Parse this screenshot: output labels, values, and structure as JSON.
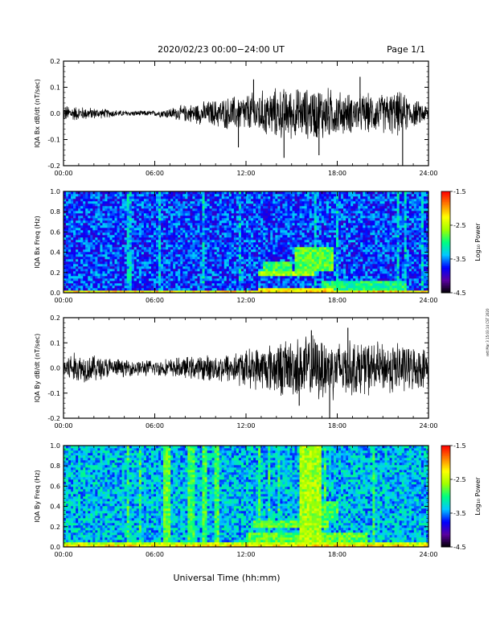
{
  "header": {
    "title": "2020/02/23  00:00−24:00 UT",
    "page": "Page 1/1"
  },
  "side_note": "rett Mar 3 15:03:14 CST 2020",
  "footer": {
    "xlabel": "Universal Time (hh:mm)"
  },
  "colorbar": {
    "label": "Log₁₀ Power",
    "ticks": [
      "-1.5",
      "-2.5",
      "-3.5",
      "-4.5"
    ],
    "colors": [
      "#000000",
      "#5a00a0",
      "#0000ff",
      "#00c8ff",
      "#00ff80",
      "#a0ff00",
      "#ffff00",
      "#ff8000",
      "#ff0000"
    ]
  },
  "chart_data": [
    {
      "type": "line",
      "ylabel": "IQA Bx dB/dt (nT/sec)",
      "xlabel": "",
      "x_tick_labels": [
        "00:00",
        "06:00",
        "12:00",
        "18:00",
        "24:00"
      ],
      "xlim": [
        0,
        24
      ],
      "ylim": [
        -0.2,
        0.2
      ],
      "y_tick_labels": [
        "-0.2",
        "-0.1",
        "0.0",
        "0.1",
        "0.2"
      ],
      "x_hours": [
        0,
        2,
        4,
        6,
        8,
        10,
        12,
        13,
        14,
        15,
        16,
        17,
        18,
        19,
        20,
        21,
        22,
        23,
        24
      ],
      "amplitude": [
        0.03,
        0.02,
        0.01,
        0.01,
        0.03,
        0.05,
        0.07,
        0.08,
        0.09,
        0.09,
        0.09,
        0.1,
        0.08,
        0.07,
        0.07,
        0.07,
        0.08,
        0.05,
        0.03
      ],
      "spikes": [
        {
          "x": 22.3,
          "y": -0.2
        },
        {
          "x": 14.5,
          "y": -0.17
        },
        {
          "x": 16.8,
          "y": -0.16
        },
        {
          "x": 11.5,
          "y": -0.13
        },
        {
          "x": 19.5,
          "y": 0.14
        },
        {
          "x": 12.5,
          "y": 0.13
        }
      ]
    },
    {
      "type": "heatmap",
      "ylabel": "IQA Bx Freq (Hz)",
      "xlabel": "",
      "x_tick_labels": [
        "00:00",
        "06:00",
        "12:00",
        "18:00",
        "24:00"
      ],
      "xlim": [
        0,
        24
      ],
      "ylim": [
        0,
        1
      ],
      "y_tick_labels": [
        "0.0",
        "0.2",
        "0.4",
        "0.6",
        "0.8",
        "1.0"
      ],
      "zlim": [
        -4.5,
        -1.5
      ],
      "base_level": -3.65,
      "features": [
        {
          "t0": 12.8,
          "t1": 17.8,
          "f0": 0.0,
          "f1": 0.04,
          "level": -2.3
        },
        {
          "t0": 12.8,
          "t1": 16.5,
          "f0": 0.16,
          "f1": 0.22,
          "level": -2.6
        },
        {
          "t0": 13.2,
          "t1": 15.0,
          "f0": 0.22,
          "f1": 0.32,
          "level": -2.9
        },
        {
          "t0": 15.2,
          "t1": 17.8,
          "f0": 0.22,
          "f1": 0.45,
          "level": -2.8
        },
        {
          "t0": 17.0,
          "t1": 22.5,
          "f0": 0.0,
          "f1": 0.12,
          "level": -3.0
        }
      ]
    },
    {
      "type": "line",
      "ylabel": "IQA By dB/dt (nT/sec)",
      "xlabel": "",
      "x_tick_labels": [
        "00:00",
        "06:00",
        "12:00",
        "18:00",
        "24:00"
      ],
      "xlim": [
        0,
        24
      ],
      "ylim": [
        -0.2,
        0.2
      ],
      "y_tick_labels": [
        "-0.2",
        "-0.1",
        "0.0",
        "0.1",
        "0.2"
      ],
      "x_hours": [
        0,
        2,
        4,
        6,
        8,
        10,
        12,
        13,
        14,
        15,
        16,
        17,
        18,
        19,
        20,
        21,
        22,
        23,
        24
      ],
      "amplitude": [
        0.06,
        0.05,
        0.03,
        0.03,
        0.04,
        0.05,
        0.07,
        0.08,
        0.1,
        0.11,
        0.12,
        0.12,
        0.11,
        0.1,
        0.1,
        0.09,
        0.1,
        0.08,
        0.07
      ],
      "spikes": [
        {
          "x": 17.5,
          "y": -0.2
        },
        {
          "x": 15.5,
          "y": -0.15
        },
        {
          "x": 18.7,
          "y": 0.16
        },
        {
          "x": 16.3,
          "y": 0.15
        }
      ]
    },
    {
      "type": "heatmap",
      "ylabel": "IQA By Freq (Hz)",
      "xlabel": "",
      "x_tick_labels": [
        "00:00",
        "06:00",
        "12:00",
        "18:00",
        "24:00"
      ],
      "xlim": [
        0,
        24
      ],
      "ylim": [
        0,
        1
      ],
      "y_tick_labels": [
        "0.0",
        "0.2",
        "0.4",
        "0.6",
        "0.8",
        "1.0"
      ],
      "zlim": [
        -4.5,
        -1.5
      ],
      "base_level": -3.35,
      "features": [
        {
          "t0": 0.0,
          "t1": 24.0,
          "f0": 0.0,
          "f1": 0.05,
          "level": -2.5
        },
        {
          "t0": 6.5,
          "t1": 7.0,
          "f0": 0.0,
          "f1": 1.0,
          "level": -2.8
        },
        {
          "t0": 8.2,
          "t1": 8.6,
          "f0": 0.0,
          "f1": 1.0,
          "level": -2.9
        },
        {
          "t0": 9.2,
          "t1": 9.5,
          "f0": 0.0,
          "f1": 1.0,
          "level": -2.9
        },
        {
          "t0": 10.0,
          "t1": 10.3,
          "f0": 0.0,
          "f1": 1.0,
          "level": -2.9
        },
        {
          "t0": 15.6,
          "t1": 16.9,
          "f0": 0.0,
          "f1": 1.0,
          "level": -2.6
        },
        {
          "t0": 12.5,
          "t1": 17.5,
          "f0": 0.18,
          "f1": 0.26,
          "level": -2.8
        },
        {
          "t0": 16.5,
          "t1": 18.0,
          "f0": 0.26,
          "f1": 0.45,
          "level": -2.9
        },
        {
          "t0": 12.0,
          "t1": 20.0,
          "f0": 0.05,
          "f1": 0.15,
          "level": -2.8
        }
      ]
    }
  ]
}
